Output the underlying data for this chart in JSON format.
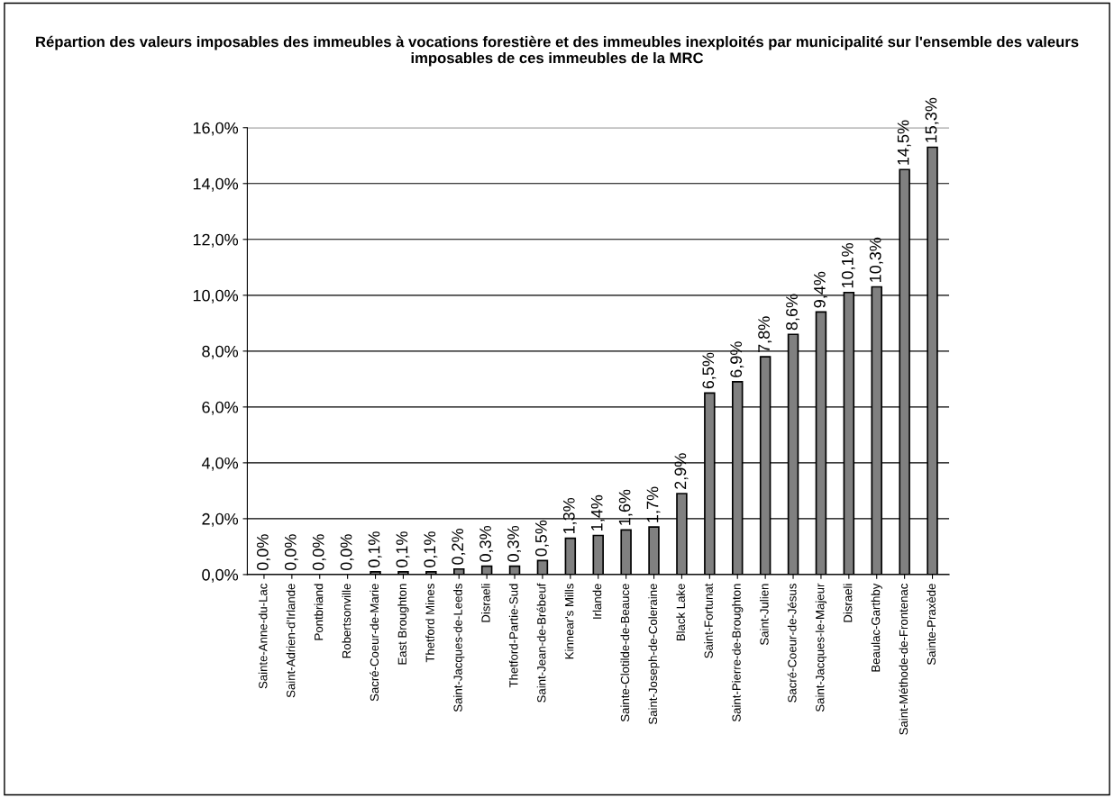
{
  "chart_data": {
    "type": "bar",
    "title": "Répartion des valeurs imposables des immeubles à vocations forestière et des immeubles inexploités par municipalité sur l'ensemble des valeurs imposables de ces immeubles de la MRC",
    "categories": [
      "Sainte-Anne-du-Lac",
      "Saint-Adrien-d'Irlande",
      "Pontbriand",
      "Robertsonville",
      "Sacré-Coeur-de-Marie",
      "East Broughton",
      "Thetford Mines",
      "Saint-Jacques-de-Leeds",
      "Disraeli",
      "Thetford-Partie-Sud",
      "Saint-Jean-de-Brébeuf",
      "Kinnear's Mills",
      "Irlande",
      "Sainte-Clotilde-de-Beauce",
      "Saint-Joseph-de-Coleraine",
      "Black Lake",
      "Saint-Fortunat",
      "Saint-Pierre-de-Broughton",
      "Saint-Julien",
      "Sacré-Coeur-de-Jésus",
      "Saint-Jacques-le-Majeur",
      "Disraeli",
      "Beaulac-Garthby",
      "Saint-Méthode-de-Frontenac",
      "Sainte-Praxède"
    ],
    "values": [
      0.0,
      0.0,
      0.0,
      0.0,
      0.1,
      0.1,
      0.1,
      0.2,
      0.3,
      0.3,
      0.5,
      1.3,
      1.4,
      1.6,
      1.7,
      2.9,
      6.5,
      6.9,
      7.8,
      8.6,
      9.4,
      10.1,
      10.3,
      14.5,
      15.3
    ],
    "value_labels": [
      "0,0%",
      "0,0%",
      "0,0%",
      "0,0%",
      "0,1%",
      "0,1%",
      "0,1%",
      "0,2%",
      "0,3%",
      "0,3%",
      "0,5%",
      "1,3%",
      "1,4%",
      "1,6%",
      "1,7%",
      "2,9%",
      "6,5%",
      "6,9%",
      "7,8%",
      "8,6%",
      "9,4%",
      "10,1%",
      "10,3%",
      "14,5%",
      "15,3%"
    ],
    "color": "#808080",
    "ylim": [
      0,
      16
    ],
    "yticks": [
      {
        "value": 0,
        "label": "0,0%"
      },
      {
        "value": 2,
        "label": "2,0%"
      },
      {
        "value": 4,
        "label": "4,0%"
      },
      {
        "value": 6,
        "label": "6,0%"
      },
      {
        "value": 8,
        "label": "8,0%"
      },
      {
        "value": 10,
        "label": "10,0%"
      },
      {
        "value": 12,
        "label": "12,0%"
      },
      {
        "value": 14,
        "label": "14,0%"
      },
      {
        "value": 16,
        "label": "16,0%"
      }
    ],
    "grid": "y",
    "legend": false
  }
}
